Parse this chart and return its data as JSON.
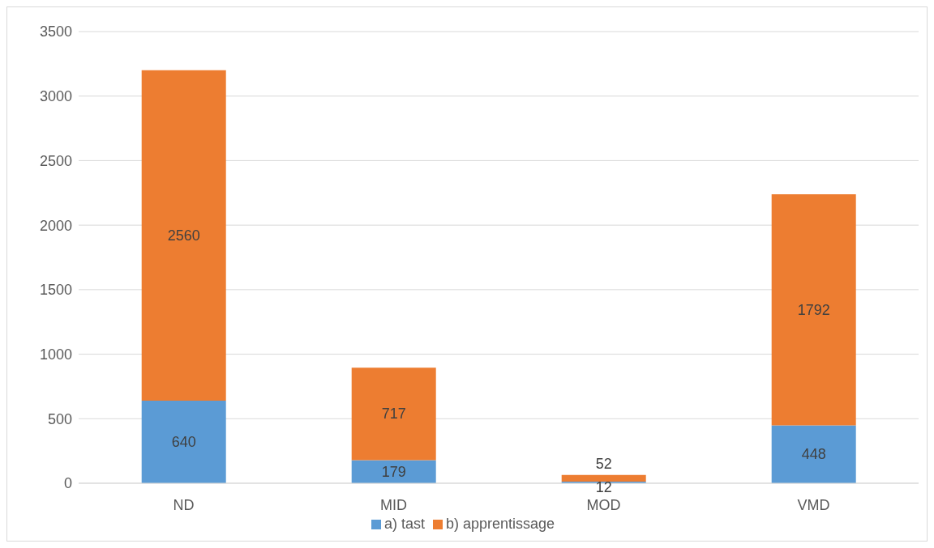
{
  "chart_data": {
    "type": "bar",
    "stacked": true,
    "categories": [
      "ND",
      "MID",
      "MOD",
      "VMD"
    ],
    "series": [
      {
        "name": "a) tast",
        "color": "#5b9bd5",
        "values": [
          640,
          179,
          12,
          448
        ]
      },
      {
        "name": "b) apprentissage",
        "color": "#ed7d31",
        "values": [
          2560,
          717,
          52,
          1792
        ]
      }
    ],
    "ylim": [
      0,
      3500
    ],
    "yticks": [
      0,
      500,
      1000,
      1500,
      2000,
      2500,
      3000,
      3500
    ],
    "grid": "y",
    "legend": "bottom",
    "data_labels": true
  }
}
